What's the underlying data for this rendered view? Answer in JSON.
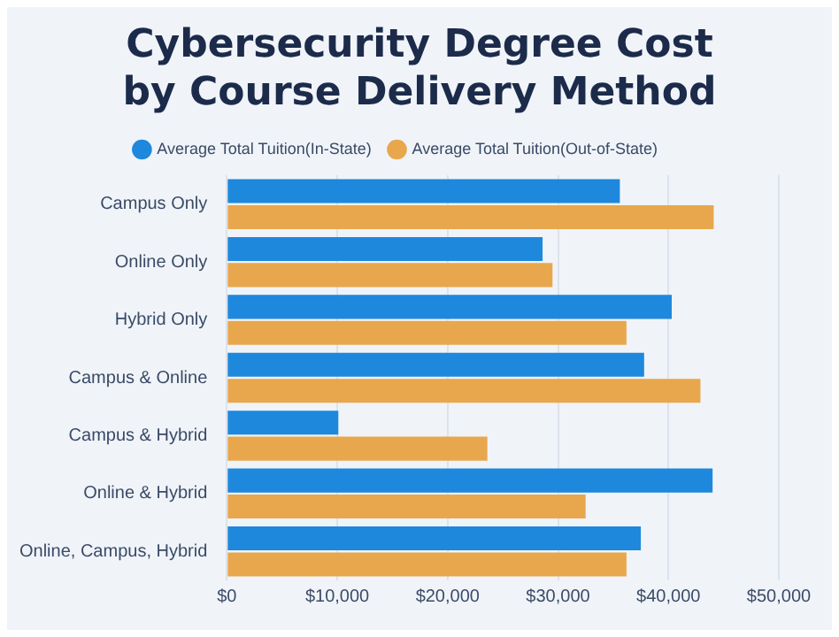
{
  "chart_data": {
    "type": "bar",
    "orientation": "horizontal",
    "title": "Cybersecurity Degree Cost\nby Course Delivery Method",
    "categories": [
      "Campus Only",
      "Online Only",
      "Hybrid Only",
      "Campus & Online",
      "Campus & Hybrid",
      "Online & Hybrid",
      "Online, Campus, Hybrid"
    ],
    "series": [
      {
        "name": "Average Total Tuition(In-State)",
        "color": "#1e88dd",
        "values": [
          35600,
          28600,
          40300,
          37800,
          10100,
          44000,
          37500
        ]
      },
      {
        "name": "Average Total Tuition(Out-of-State)",
        "color": "#e8a74c",
        "values": [
          44100,
          29500,
          36200,
          42900,
          23600,
          32500,
          36200
        ]
      }
    ],
    "xlim": [
      0,
      50000
    ],
    "xticks": [
      {
        "value": 0,
        "label": "$0"
      },
      {
        "value": 10000,
        "label": "$10,000"
      },
      {
        "value": 20000,
        "label": "$20,000"
      },
      {
        "value": 30000,
        "label": "$30,000"
      },
      {
        "value": 40000,
        "label": "$40,000"
      },
      {
        "value": 50000,
        "label": "$50,000"
      }
    ],
    "grid": "x",
    "legend": "top"
  }
}
